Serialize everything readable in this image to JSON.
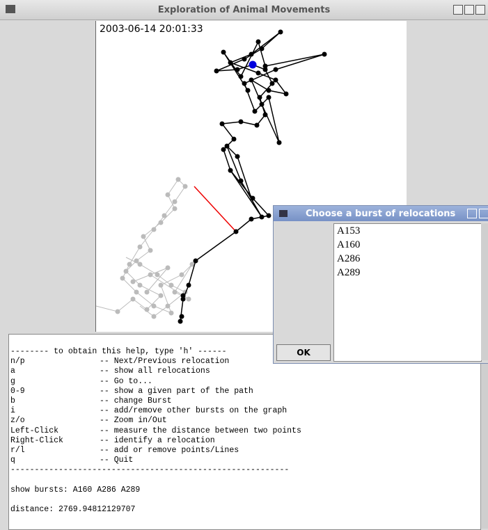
{
  "window": {
    "title": "Exploration of Animal Movements"
  },
  "plot": {
    "timestamp": "2003-06-14 20:01:33"
  },
  "help": {
    "header": "-------- to obtain this help, type 'h' ------",
    "commands": [
      {
        "key": "n/p",
        "description": "-- Next/Previous relocation"
      },
      {
        "key": "a",
        "description": "-- show all relocations"
      },
      {
        "key": "g",
        "description": "-- Go to..."
      },
      {
        "key": "0-9",
        "description": "-- show a given part of the path"
      },
      {
        "key": "b",
        "description": "-- change Burst"
      },
      {
        "key": "i",
        "description": "-- add/remove other bursts on the graph"
      },
      {
        "key": "z/o",
        "description": "-- Zoom in/Out"
      },
      {
        "key": "Left-Click",
        "description": "-- measure the distance between two points"
      },
      {
        "key": "Right-Click",
        "description": "-- identify a relocation"
      },
      {
        "key": "r/l",
        "description": "-- add or remove points/Lines"
      },
      {
        "key": "q",
        "description": "-- Quit"
      }
    ],
    "footer": "----------------------------------------------------------"
  },
  "output": {
    "bursts": "show bursts: A160 A286 A289",
    "distance": "distance: 2769.94812129707"
  },
  "dialog": {
    "title": "Choose a burst of relocations",
    "items": [
      "A153",
      "A160",
      "A286",
      "A289"
    ],
    "ok": "OK"
  }
}
